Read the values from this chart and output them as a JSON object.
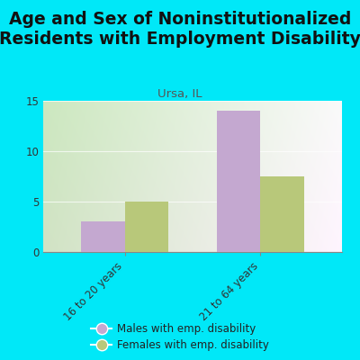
{
  "title": "Age and Sex of Noninstitutionalized\nResidents with Employment Disability",
  "subtitle": "Ursa, IL",
  "categories": [
    "16 to 20 years",
    "21 to 64 years"
  ],
  "males": [
    3,
    14
  ],
  "females": [
    5,
    7.5
  ],
  "male_color": "#c4a8d0",
  "female_color": "#b8c87a",
  "ylim": [
    0,
    15
  ],
  "yticks": [
    0,
    5,
    10,
    15
  ],
  "bar_width": 0.32,
  "outer_bg": "#00e8f8",
  "title_fontsize": 13.5,
  "subtitle_fontsize": 9.5,
  "legend_male": "Males with emp. disability",
  "legend_female": "Females with emp. disability",
  "bg_left": "#cce8c0",
  "bg_right": "#f0f0e0"
}
